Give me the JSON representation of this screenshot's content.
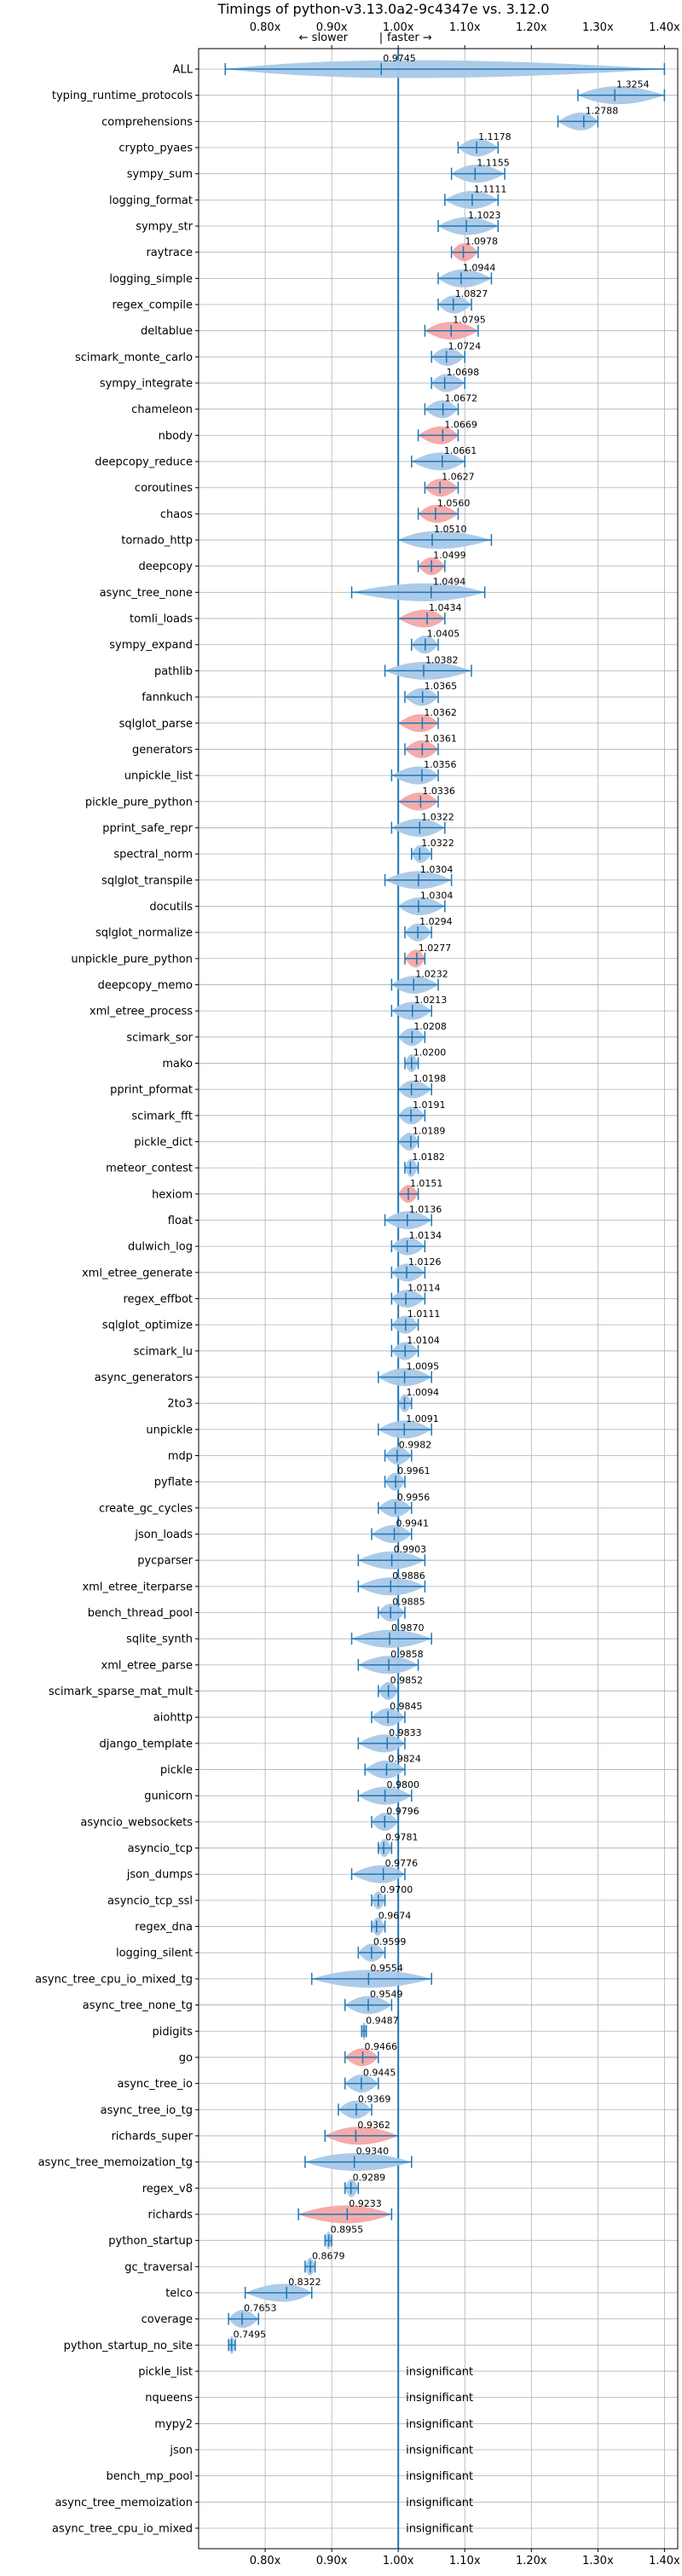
{
  "chart_data": {
    "type": "violin",
    "title": "Timings of python-v3.13.0a2-9c4347e vs. 3.12.0",
    "direction_labels": {
      "slower": "← slower",
      "separator": "|",
      "faster": "faster →"
    },
    "xlim": [
      0.7,
      1.42
    ],
    "x_ticks": [
      0.8,
      0.9,
      1.0,
      1.1,
      1.2,
      1.3,
      1.4
    ],
    "x_tick_labels": [
      "0.80x",
      "0.90x",
      "1.00x",
      "1.10x",
      "1.20x",
      "1.30x",
      "1.40x"
    ],
    "reference_line": 1.0,
    "grid": true,
    "colors": {
      "faster": "#a8c8e8",
      "slower": "#f4a6a6",
      "whisker": "#1f77b4"
    },
    "insignificant_text": "insignificant",
    "benchmarks": [
      {
        "name": "ALL",
        "value": 0.9745,
        "min": 0.74,
        "max": 1.4,
        "color": "blue"
      },
      {
        "name": "typing_runtime_protocols",
        "value": 1.3254,
        "min": 1.27,
        "max": 1.4,
        "color": "blue"
      },
      {
        "name": "comprehensions",
        "value": 1.2788,
        "min": 1.24,
        "max": 1.3,
        "color": "blue"
      },
      {
        "name": "crypto_pyaes",
        "value": 1.1178,
        "min": 1.09,
        "max": 1.15,
        "color": "blue"
      },
      {
        "name": "sympy_sum",
        "value": 1.1155,
        "min": 1.08,
        "max": 1.16,
        "color": "blue"
      },
      {
        "name": "logging_format",
        "value": 1.1111,
        "min": 1.07,
        "max": 1.15,
        "color": "blue"
      },
      {
        "name": "sympy_str",
        "value": 1.1023,
        "min": 1.06,
        "max": 1.15,
        "color": "blue"
      },
      {
        "name": "raytrace",
        "value": 1.0978,
        "min": 1.08,
        "max": 1.12,
        "color": "red"
      },
      {
        "name": "logging_simple",
        "value": 1.0944,
        "min": 1.06,
        "max": 1.14,
        "color": "blue"
      },
      {
        "name": "regex_compile",
        "value": 1.0827,
        "min": 1.06,
        "max": 1.11,
        "color": "blue"
      },
      {
        "name": "deltablue",
        "value": 1.0795,
        "min": 1.04,
        "max": 1.12,
        "color": "red"
      },
      {
        "name": "scimark_monte_carlo",
        "value": 1.0724,
        "min": 1.05,
        "max": 1.1,
        "color": "blue"
      },
      {
        "name": "sympy_integrate",
        "value": 1.0698,
        "min": 1.05,
        "max": 1.1,
        "color": "blue"
      },
      {
        "name": "chameleon",
        "value": 1.0672,
        "min": 1.04,
        "max": 1.09,
        "color": "blue"
      },
      {
        "name": "nbody",
        "value": 1.0669,
        "min": 1.03,
        "max": 1.09,
        "color": "red"
      },
      {
        "name": "deepcopy_reduce",
        "value": 1.0661,
        "min": 1.02,
        "max": 1.1,
        "color": "blue"
      },
      {
        "name": "coroutines",
        "value": 1.0627,
        "min": 1.04,
        "max": 1.09,
        "color": "red"
      },
      {
        "name": "chaos",
        "value": 1.056,
        "min": 1.03,
        "max": 1.09,
        "color": "red"
      },
      {
        "name": "tornado_http",
        "value": 1.051,
        "min": 1.0,
        "max": 1.14,
        "color": "blue"
      },
      {
        "name": "deepcopy",
        "value": 1.0499,
        "min": 1.03,
        "max": 1.07,
        "color": "red"
      },
      {
        "name": "async_tree_none",
        "value": 1.0494,
        "min": 0.93,
        "max": 1.13,
        "color": "blue"
      },
      {
        "name": "tomli_loads",
        "value": 1.0434,
        "min": 1.0,
        "max": 1.07,
        "color": "red"
      },
      {
        "name": "sympy_expand",
        "value": 1.0405,
        "min": 1.02,
        "max": 1.06,
        "color": "blue"
      },
      {
        "name": "pathlib",
        "value": 1.0382,
        "min": 0.98,
        "max": 1.11,
        "color": "blue"
      },
      {
        "name": "fannkuch",
        "value": 1.0365,
        "min": 1.01,
        "max": 1.06,
        "color": "blue"
      },
      {
        "name": "sqlglot_parse",
        "value": 1.0362,
        "min": 1.0,
        "max": 1.06,
        "color": "red"
      },
      {
        "name": "generators",
        "value": 1.0361,
        "min": 1.01,
        "max": 1.06,
        "color": "red"
      },
      {
        "name": "unpickle_list",
        "value": 1.0356,
        "min": 0.99,
        "max": 1.06,
        "color": "blue"
      },
      {
        "name": "pickle_pure_python",
        "value": 1.0336,
        "min": 1.0,
        "max": 1.06,
        "color": "red"
      },
      {
        "name": "pprint_safe_repr",
        "value": 1.0322,
        "min": 0.99,
        "max": 1.07,
        "color": "blue"
      },
      {
        "name": "spectral_norm",
        "value": 1.0322,
        "min": 1.02,
        "max": 1.05,
        "color": "blue"
      },
      {
        "name": "sqlglot_transpile",
        "value": 1.0304,
        "min": 0.98,
        "max": 1.08,
        "color": "blue"
      },
      {
        "name": "docutils",
        "value": 1.0304,
        "min": 1.0,
        "max": 1.07,
        "color": "blue"
      },
      {
        "name": "sqlglot_normalize",
        "value": 1.0294,
        "min": 1.01,
        "max": 1.05,
        "color": "blue"
      },
      {
        "name": "unpickle_pure_python",
        "value": 1.0277,
        "min": 1.01,
        "max": 1.04,
        "color": "red"
      },
      {
        "name": "deepcopy_memo",
        "value": 1.0232,
        "min": 0.99,
        "max": 1.06,
        "color": "blue"
      },
      {
        "name": "xml_etree_process",
        "value": 1.0213,
        "min": 0.99,
        "max": 1.05,
        "color": "blue"
      },
      {
        "name": "scimark_sor",
        "value": 1.0208,
        "min": 1.0,
        "max": 1.04,
        "color": "blue"
      },
      {
        "name": "mako",
        "value": 1.02,
        "min": 1.01,
        "max": 1.03,
        "color": "blue"
      },
      {
        "name": "pprint_pformat",
        "value": 1.0198,
        "min": 1.0,
        "max": 1.05,
        "color": "blue"
      },
      {
        "name": "scimark_fft",
        "value": 1.0191,
        "min": 1.0,
        "max": 1.04,
        "color": "blue"
      },
      {
        "name": "pickle_dict",
        "value": 1.0189,
        "min": 1.0,
        "max": 1.03,
        "color": "blue"
      },
      {
        "name": "meteor_contest",
        "value": 1.0182,
        "min": 1.01,
        "max": 1.03,
        "color": "blue"
      },
      {
        "name": "hexiom",
        "value": 1.0151,
        "min": 1.0,
        "max": 1.03,
        "color": "red"
      },
      {
        "name": "float",
        "value": 1.0136,
        "min": 0.98,
        "max": 1.05,
        "color": "blue"
      },
      {
        "name": "dulwich_log",
        "value": 1.0134,
        "min": 0.99,
        "max": 1.04,
        "color": "blue"
      },
      {
        "name": "xml_etree_generate",
        "value": 1.0126,
        "min": 0.99,
        "max": 1.04,
        "color": "blue"
      },
      {
        "name": "regex_effbot",
        "value": 1.0114,
        "min": 0.99,
        "max": 1.04,
        "color": "blue"
      },
      {
        "name": "sqlglot_optimize",
        "value": 1.0111,
        "min": 0.99,
        "max": 1.03,
        "color": "blue"
      },
      {
        "name": "scimark_lu",
        "value": 1.0104,
        "min": 0.99,
        "max": 1.03,
        "color": "blue"
      },
      {
        "name": "async_generators",
        "value": 1.0095,
        "min": 0.97,
        "max": 1.05,
        "color": "blue"
      },
      {
        "name": "2to3",
        "value": 1.0094,
        "min": 1.0,
        "max": 1.02,
        "color": "blue"
      },
      {
        "name": "unpickle",
        "value": 1.0091,
        "min": 0.97,
        "max": 1.05,
        "color": "blue"
      },
      {
        "name": "mdp",
        "value": 0.9982,
        "min": 0.98,
        "max": 1.02,
        "color": "blue"
      },
      {
        "name": "pyflate",
        "value": 0.9961,
        "min": 0.98,
        "max": 1.01,
        "color": "blue"
      },
      {
        "name": "create_gc_cycles",
        "value": 0.9956,
        "min": 0.97,
        "max": 1.02,
        "color": "blue"
      },
      {
        "name": "json_loads",
        "value": 0.9941,
        "min": 0.96,
        "max": 1.02,
        "color": "blue"
      },
      {
        "name": "pycparser",
        "value": 0.9903,
        "min": 0.94,
        "max": 1.04,
        "color": "blue"
      },
      {
        "name": "xml_etree_iterparse",
        "value": 0.9886,
        "min": 0.94,
        "max": 1.04,
        "color": "blue"
      },
      {
        "name": "bench_thread_pool",
        "value": 0.9885,
        "min": 0.97,
        "max": 1.01,
        "color": "blue"
      },
      {
        "name": "sqlite_synth",
        "value": 0.987,
        "min": 0.93,
        "max": 1.05,
        "color": "blue"
      },
      {
        "name": "xml_etree_parse",
        "value": 0.9858,
        "min": 0.94,
        "max": 1.03,
        "color": "blue"
      },
      {
        "name": "scimark_sparse_mat_mult",
        "value": 0.9852,
        "min": 0.97,
        "max": 1.0,
        "color": "blue"
      },
      {
        "name": "aiohttp",
        "value": 0.9845,
        "min": 0.96,
        "max": 1.01,
        "color": "blue"
      },
      {
        "name": "django_template",
        "value": 0.9833,
        "min": 0.94,
        "max": 1.01,
        "color": "blue"
      },
      {
        "name": "pickle",
        "value": 0.9824,
        "min": 0.95,
        "max": 1.01,
        "color": "blue"
      },
      {
        "name": "gunicorn",
        "value": 0.98,
        "min": 0.94,
        "max": 1.02,
        "color": "blue"
      },
      {
        "name": "asyncio_websockets",
        "value": 0.9796,
        "min": 0.96,
        "max": 1.0,
        "color": "blue"
      },
      {
        "name": "asyncio_tcp",
        "value": 0.9781,
        "min": 0.97,
        "max": 0.99,
        "color": "blue"
      },
      {
        "name": "json_dumps",
        "value": 0.9776,
        "min": 0.93,
        "max": 1.01,
        "color": "blue"
      },
      {
        "name": "asyncio_tcp_ssl",
        "value": 0.97,
        "min": 0.96,
        "max": 0.98,
        "color": "blue"
      },
      {
        "name": "regex_dna",
        "value": 0.9674,
        "min": 0.96,
        "max": 0.98,
        "color": "blue"
      },
      {
        "name": "logging_silent",
        "value": 0.9599,
        "min": 0.94,
        "max": 0.98,
        "color": "blue"
      },
      {
        "name": "async_tree_cpu_io_mixed_tg",
        "value": 0.9554,
        "min": 0.87,
        "max": 1.05,
        "color": "blue"
      },
      {
        "name": "async_tree_none_tg",
        "value": 0.9549,
        "min": 0.92,
        "max": 0.99,
        "color": "blue"
      },
      {
        "name": "pidigits",
        "value": 0.9487,
        "min": 0.945,
        "max": 0.952,
        "color": "blue"
      },
      {
        "name": "go",
        "value": 0.9466,
        "min": 0.92,
        "max": 0.97,
        "color": "red"
      },
      {
        "name": "async_tree_io",
        "value": 0.9445,
        "min": 0.92,
        "max": 0.97,
        "color": "blue"
      },
      {
        "name": "async_tree_io_tg",
        "value": 0.9369,
        "min": 0.91,
        "max": 0.96,
        "color": "blue"
      },
      {
        "name": "richards_super",
        "value": 0.9362,
        "min": 0.89,
        "max": 1.0,
        "color": "red"
      },
      {
        "name": "async_tree_memoization_tg",
        "value": 0.934,
        "min": 0.86,
        "max": 1.02,
        "color": "blue"
      },
      {
        "name": "regex_v8",
        "value": 0.9289,
        "min": 0.92,
        "max": 0.94,
        "color": "blue"
      },
      {
        "name": "richards",
        "value": 0.9233,
        "min": 0.85,
        "max": 0.99,
        "color": "red"
      },
      {
        "name": "python_startup",
        "value": 0.8955,
        "min": 0.89,
        "max": 0.9,
        "color": "blue"
      },
      {
        "name": "gc_traversal",
        "value": 0.8679,
        "min": 0.86,
        "max": 0.875,
        "color": "blue"
      },
      {
        "name": "telco",
        "value": 0.8322,
        "min": 0.77,
        "max": 0.87,
        "color": "blue"
      },
      {
        "name": "coverage",
        "value": 0.7653,
        "min": 0.745,
        "max": 0.79,
        "color": "blue"
      },
      {
        "name": "python_startup_no_site",
        "value": 0.7495,
        "min": 0.745,
        "max": 0.755,
        "color": "blue"
      },
      {
        "name": "pickle_list",
        "value": null,
        "insignificant": true
      },
      {
        "name": "nqueens",
        "value": null,
        "insignificant": true
      },
      {
        "name": "mypy2",
        "value": null,
        "insignificant": true
      },
      {
        "name": "json",
        "value": null,
        "insignificant": true
      },
      {
        "name": "bench_mp_pool",
        "value": null,
        "insignificant": true
      },
      {
        "name": "async_tree_memoization",
        "value": null,
        "insignificant": true
      },
      {
        "name": "async_tree_cpu_io_mixed",
        "value": null,
        "insignificant": true
      }
    ]
  }
}
